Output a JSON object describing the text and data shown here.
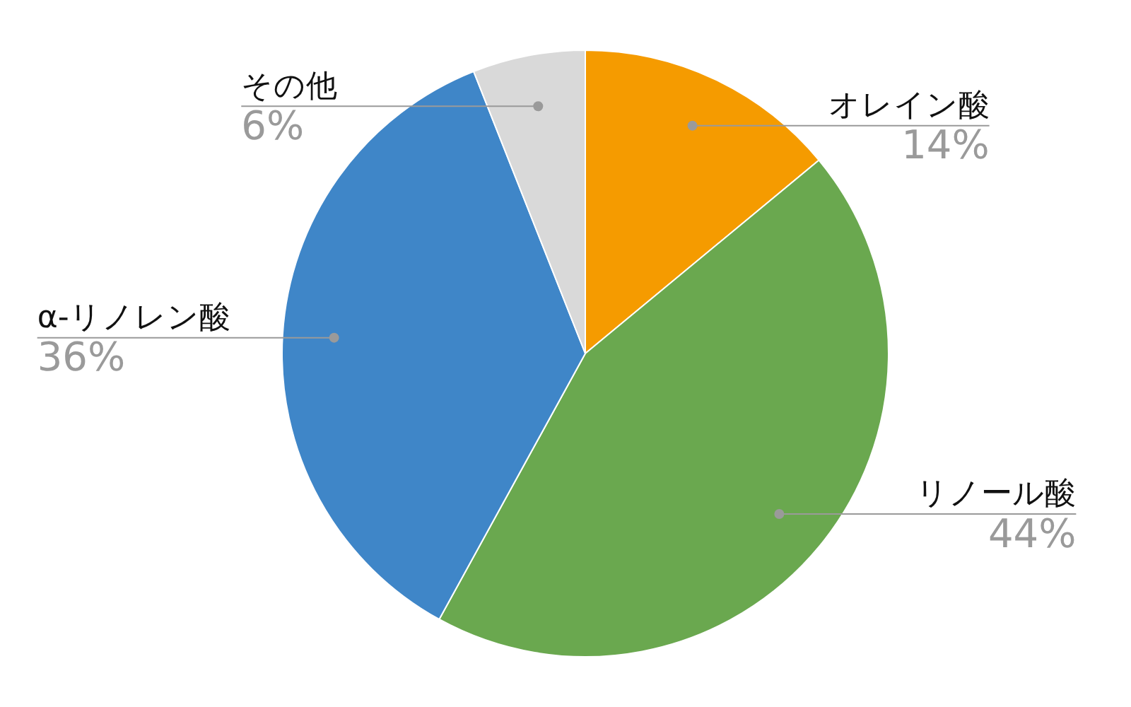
{
  "chart_data": {
    "type": "pie",
    "categories": [
      "オレイン酸",
      "リノール酸",
      "α-リノレン酸",
      "その他"
    ],
    "values": [
      14,
      44,
      36,
      6
    ],
    "colors": [
      "#f59b00",
      "#6aa84f",
      "#3f86c8",
      "#d9d9d9"
    ],
    "value_labels": [
      "14%",
      "44%",
      "36%",
      "6%"
    ],
    "legend": false
  }
}
